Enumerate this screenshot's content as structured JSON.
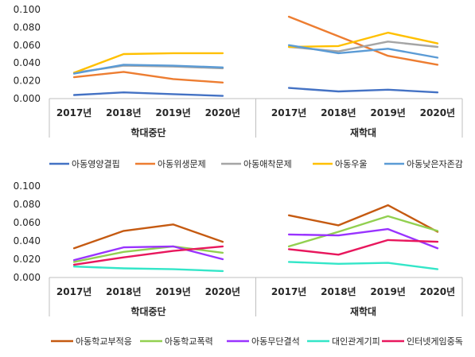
{
  "chart_data": [
    {
      "type": "line",
      "title": "",
      "categories": [
        "2017년",
        "2018년",
        "2019년",
        "2020년"
      ],
      "groups": [
        "학대중단",
        "재학대"
      ],
      "ylim": [
        0,
        0.1
      ],
      "yticks": [
        "0.000",
        "0.020",
        "0.040",
        "0.060",
        "0.080",
        "0.100"
      ],
      "grid": false,
      "legend_position": "bottom",
      "series": [
        {
          "name": "아동영양결핍",
          "color": "#4472C4",
          "values": [
            [
              0.004,
              0.007,
              0.005,
              0.003
            ],
            [
              0.012,
              0.008,
              0.01,
              0.007
            ]
          ]
        },
        {
          "name": "아동위생문제",
          "color": "#ED7D31",
          "values": [
            [
              0.024,
              0.03,
              0.022,
              0.018
            ],
            [
              0.092,
              0.07,
              0.048,
              0.038
            ]
          ]
        },
        {
          "name": "아동애착문제",
          "color": "#A5A5A5",
          "values": [
            [
              0.029,
              0.037,
              0.036,
              0.034
            ],
            [
              0.058,
              0.053,
              0.064,
              0.058
            ]
          ]
        },
        {
          "name": "아동우울",
          "color": "#FFC000",
          "values": [
            [
              0.029,
              0.05,
              0.051,
              0.051
            ],
            [
              0.058,
              0.059,
              0.074,
              0.062
            ]
          ]
        },
        {
          "name": "아동낮은자존감",
          "color": "#5B9BD5",
          "values": [
            [
              0.028,
              0.038,
              0.037,
              0.035
            ],
            [
              0.06,
              0.051,
              0.056,
              0.046
            ]
          ]
        }
      ]
    },
    {
      "type": "line",
      "title": "",
      "categories": [
        "2017년",
        "2018년",
        "2019년",
        "2020년"
      ],
      "groups": [
        "학대중단",
        "재학대"
      ],
      "ylim": [
        0,
        0.1
      ],
      "yticks": [
        "0.000",
        "0.020",
        "0.040",
        "0.060",
        "0.080",
        "0.100"
      ],
      "grid": false,
      "legend_position": "bottom",
      "series": [
        {
          "name": "아동학교부적응",
          "color": "#C55A11",
          "values": [
            [
              0.032,
              0.051,
              0.058,
              0.039
            ],
            [
              0.068,
              0.057,
              0.079,
              0.05
            ]
          ]
        },
        {
          "name": "아동학교폭력",
          "color": "#92D050",
          "values": [
            [
              0.017,
              0.028,
              0.034,
              0.027
            ],
            [
              0.034,
              0.05,
              0.067,
              0.051
            ]
          ]
        },
        {
          "name": "아동무단결석",
          "color": "#9933FF",
          "values": [
            [
              0.019,
              0.033,
              0.034,
              0.02
            ],
            [
              0.047,
              0.046,
              0.053,
              0.032
            ]
          ]
        },
        {
          "name": "대인관계기피",
          "color": "#33E6C8",
          "values": [
            [
              0.012,
              0.01,
              0.009,
              0.007
            ],
            [
              0.017,
              0.015,
              0.016,
              0.009
            ]
          ]
        },
        {
          "name": "인터넷게임중독",
          "color": "#E8175D",
          "values": [
            [
              0.014,
              0.022,
              0.029,
              0.034
            ],
            [
              0.031,
              0.025,
              0.041,
              0.039
            ]
          ]
        }
      ]
    }
  ]
}
